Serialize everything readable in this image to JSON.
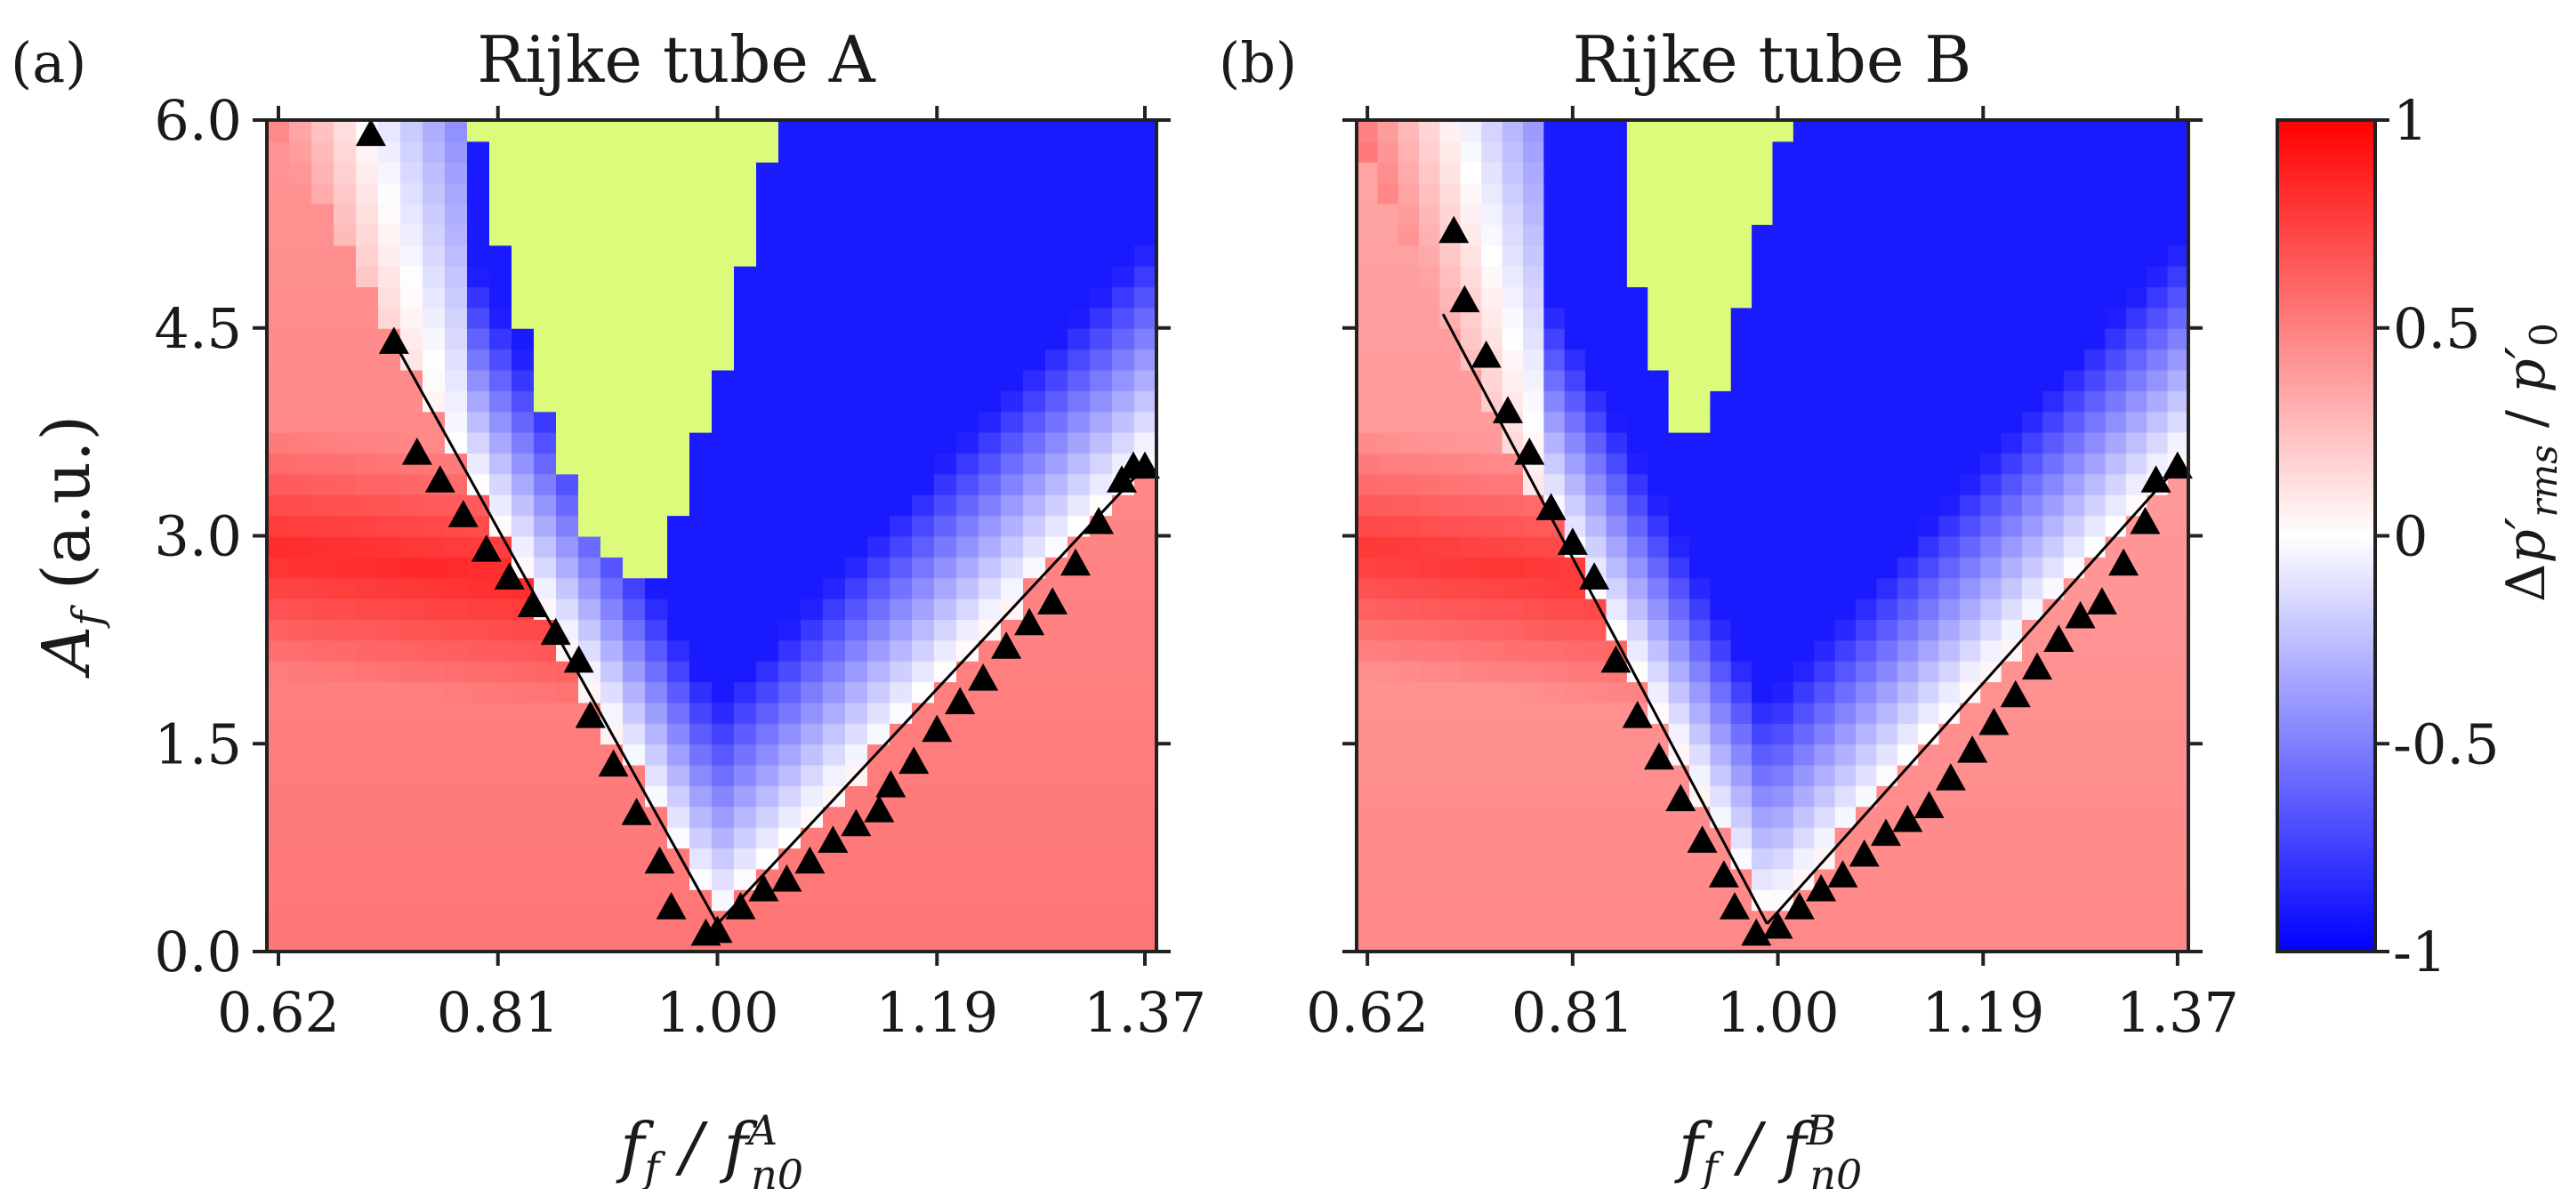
{
  "colors": {
    "negative": "#0000ff",
    "neutral": "#ffffff",
    "positive": "#ff0000",
    "stable_region": "#dcfb7a",
    "marker": "#000000"
  },
  "chart_data": [
    {
      "panel": "(a)",
      "type": "heatmap",
      "title": "Rijke tube A",
      "xlabel": "f_f / f_n0^A",
      "ylabel": "A_f (a.u.)",
      "xlim": [
        0.61,
        1.38
      ],
      "ylim": [
        0.0,
        6.0
      ],
      "xticks": [
        "0.62",
        "0.81",
        "1.00",
        "1.19",
        "1.37"
      ],
      "xtick_values": [
        0.62,
        0.81,
        1.0,
        1.19,
        1.37
      ],
      "yticks": [
        "0.0",
        "1.5",
        "3.0",
        "4.5",
        "6.0"
      ],
      "ytick_values": [
        0.0,
        1.5,
        3.0,
        4.5,
        6.0
      ],
      "stable_region": [
        [
          0.79,
          6.0
        ],
        [
          0.81,
          5.1
        ],
        [
          0.83,
          4.5
        ],
        [
          0.86,
          3.7
        ],
        [
          0.89,
          3.0
        ],
        [
          0.92,
          2.65
        ],
        [
          0.95,
          2.75
        ],
        [
          0.97,
          3.3
        ],
        [
          1.0,
          4.1
        ],
        [
          1.03,
          5.1
        ],
        [
          1.05,
          6.0
        ]
      ],
      "boundary_markers": [
        [
          0.7,
          5.9
        ],
        [
          0.72,
          4.4
        ],
        [
          0.74,
          3.6
        ],
        [
          0.76,
          3.4
        ],
        [
          0.78,
          3.15
        ],
        [
          0.8,
          2.9
        ],
        [
          0.82,
          2.7
        ],
        [
          0.84,
          2.5
        ],
        [
          0.86,
          2.3
        ],
        [
          0.88,
          2.1
        ],
        [
          0.89,
          1.7
        ],
        [
          0.91,
          1.35
        ],
        [
          0.93,
          1.0
        ],
        [
          0.95,
          0.65
        ],
        [
          0.96,
          0.32
        ],
        [
          0.99,
          0.13
        ],
        [
          1.0,
          0.15
        ],
        [
          1.02,
          0.32
        ],
        [
          1.04,
          0.45
        ],
        [
          1.06,
          0.52
        ],
        [
          1.08,
          0.65
        ],
        [
          1.1,
          0.8
        ],
        [
          1.12,
          0.92
        ],
        [
          1.14,
          1.02
        ],
        [
          1.15,
          1.2
        ],
        [
          1.17,
          1.37
        ],
        [
          1.19,
          1.6
        ],
        [
          1.21,
          1.8
        ],
        [
          1.23,
          1.97
        ],
        [
          1.25,
          2.2
        ],
        [
          1.27,
          2.37
        ],
        [
          1.29,
          2.52
        ],
        [
          1.31,
          2.8
        ],
        [
          1.33,
          3.1
        ],
        [
          1.35,
          3.4
        ],
        [
          1.36,
          3.5
        ],
        [
          1.37,
          3.5
        ]
      ],
      "fit_lines": [
        [
          [
            0.72,
            4.4
          ],
          [
            1.0,
            0.2
          ]
        ],
        [
          [
            1.0,
            0.2
          ],
          [
            1.37,
            3.5
          ]
        ]
      ]
    },
    {
      "panel": "(b)",
      "type": "heatmap",
      "title": "Rijke tube B",
      "xlabel": "f_f / f_n0^B",
      "ylabel": "",
      "xlim": [
        0.61,
        1.38
      ],
      "ylim": [
        0.0,
        6.0
      ],
      "xticks": [
        "0.62",
        "0.81",
        "1.00",
        "1.19",
        "1.37"
      ],
      "xtick_values": [
        0.62,
        0.81,
        1.0,
        1.19,
        1.37
      ],
      "yticks": [],
      "ytick_values": [
        0.0,
        1.5,
        3.0,
        4.5,
        6.0
      ],
      "stable_region": [
        [
          0.85,
          6.0
        ],
        [
          0.87,
          4.8
        ],
        [
          0.89,
          4.2
        ],
        [
          0.91,
          3.75
        ],
        [
          0.94,
          3.85
        ],
        [
          0.96,
          4.4
        ],
        [
          0.98,
          5.0
        ],
        [
          1.0,
          5.8
        ],
        [
          1.01,
          6.0
        ]
      ],
      "boundary_markers": [
        [
          0.7,
          5.2
        ],
        [
          0.71,
          4.7
        ],
        [
          0.73,
          4.3
        ],
        [
          0.75,
          3.9
        ],
        [
          0.77,
          3.6
        ],
        [
          0.79,
          3.2
        ],
        [
          0.81,
          2.95
        ],
        [
          0.83,
          2.7
        ],
        [
          0.85,
          2.1
        ],
        [
          0.87,
          1.7
        ],
        [
          0.89,
          1.4
        ],
        [
          0.91,
          1.1
        ],
        [
          0.93,
          0.8
        ],
        [
          0.95,
          0.55
        ],
        [
          0.96,
          0.32
        ],
        [
          0.98,
          0.13
        ],
        [
          1.0,
          0.18
        ],
        [
          1.02,
          0.32
        ],
        [
          1.04,
          0.45
        ],
        [
          1.06,
          0.55
        ],
        [
          1.08,
          0.7
        ],
        [
          1.1,
          0.85
        ],
        [
          1.12,
          0.95
        ],
        [
          1.14,
          1.05
        ],
        [
          1.16,
          1.25
        ],
        [
          1.18,
          1.45
        ],
        [
          1.2,
          1.65
        ],
        [
          1.22,
          1.85
        ],
        [
          1.24,
          2.05
        ],
        [
          1.26,
          2.25
        ],
        [
          1.28,
          2.42
        ],
        [
          1.3,
          2.52
        ],
        [
          1.32,
          2.8
        ],
        [
          1.34,
          3.1
        ],
        [
          1.35,
          3.4
        ],
        [
          1.37,
          3.5
        ]
      ],
      "fit_lines": [
        [
          [
            0.69,
            4.6
          ],
          [
            0.99,
            0.2
          ]
        ],
        [
          [
            0.99,
            0.2
          ],
          [
            1.37,
            3.5
          ]
        ]
      ]
    }
  ],
  "colorbar": {
    "label": "Δp'rms / p'0",
    "range": [
      -1,
      1
    ],
    "tick_labels": [
      "1",
      "0.5",
      "0",
      "-0.5",
      "-1"
    ],
    "tick_values": [
      1,
      0.5,
      0,
      -0.5,
      -1
    ]
  }
}
